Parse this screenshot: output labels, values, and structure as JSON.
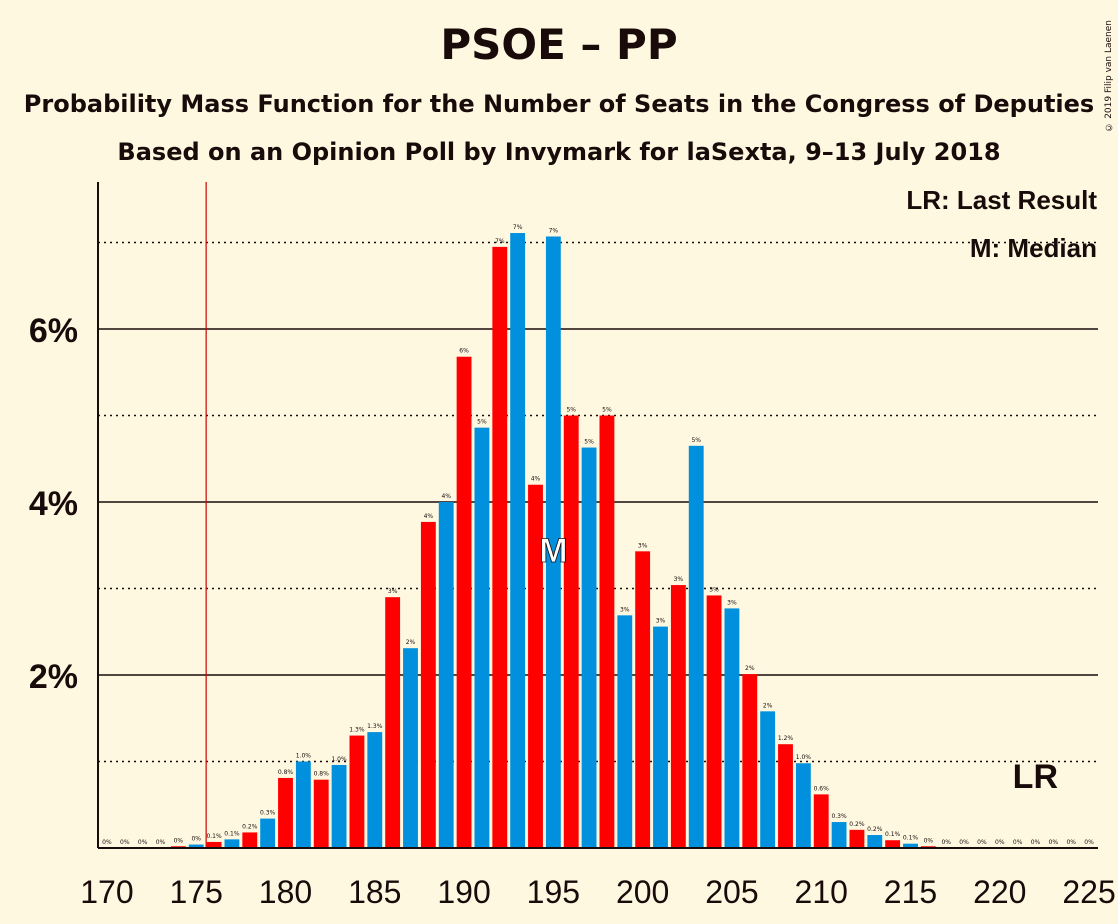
{
  "header": {
    "title": "PSOE – PP",
    "subtitle": "Probability Mass Function for the Number of Seats in the Congress of Deputies",
    "subtitle2": "Based on an Opinion Poll by Invymark for laSexta, 9–13 July 2018",
    "copyright": "© 2019 Filip van Laenen"
  },
  "legend": {
    "last_result": "LR: Last Result",
    "median": "M: Median"
  },
  "colors": {
    "background": "#fff8e1",
    "red": "#ff0000",
    "blue": "#0090dd",
    "text": "#1a0b0b",
    "last_result_line": "#cc0000"
  },
  "chart_data": {
    "type": "bar",
    "x_start": 170,
    "x_end": 225,
    "xticks": [
      170,
      175,
      180,
      185,
      190,
      195,
      200,
      205,
      210,
      215,
      220,
      225
    ],
    "ylim": [
      0,
      7.7
    ],
    "yticks": [
      {
        "value": 2,
        "label": "2%"
      },
      {
        "value": 4,
        "label": "4%"
      },
      {
        "value": 6,
        "label": "6%"
      }
    ],
    "dotted_gridlines": [
      1,
      3,
      5,
      7
    ],
    "last_result": 176,
    "median": 195,
    "median_label": "M",
    "last_result_label": "LR",
    "bars": [
      {
        "seats": 170,
        "value": 0.0,
        "label": "0%"
      },
      {
        "seats": 171,
        "value": 0.0,
        "label": "0%"
      },
      {
        "seats": 172,
        "value": 0.0,
        "label": "0%"
      },
      {
        "seats": 173,
        "value": 0.0,
        "label": "0%"
      },
      {
        "seats": 174,
        "value": 0.02,
        "label": "0%"
      },
      {
        "seats": 175,
        "value": 0.04,
        "label": "0%"
      },
      {
        "seats": 176,
        "value": 0.07,
        "label": "0.1%"
      },
      {
        "seats": 177,
        "value": 0.1,
        "label": "0.1%"
      },
      {
        "seats": 178,
        "value": 0.18,
        "label": "0.2%"
      },
      {
        "seats": 179,
        "value": 0.34,
        "label": "0.3%"
      },
      {
        "seats": 180,
        "value": 0.81,
        "label": "0.8%"
      },
      {
        "seats": 181,
        "value": 1.0,
        "label": "1.0%"
      },
      {
        "seats": 182,
        "value": 0.79,
        "label": "0.8%"
      },
      {
        "seats": 183,
        "value": 0.96,
        "label": "1.0%"
      },
      {
        "seats": 184,
        "value": 1.3,
        "label": "1.3%"
      },
      {
        "seats": 185,
        "value": 1.34,
        "label": "1.3%"
      },
      {
        "seats": 186,
        "value": 2.9,
        "label": "3%"
      },
      {
        "seats": 187,
        "value": 2.31,
        "label": "2%"
      },
      {
        "seats": 188,
        "value": 3.77,
        "label": "4%"
      },
      {
        "seats": 189,
        "value": 4.0,
        "label": "4%"
      },
      {
        "seats": 190,
        "value": 5.68,
        "label": "6%"
      },
      {
        "seats": 191,
        "value": 4.86,
        "label": "5%"
      },
      {
        "seats": 192,
        "value": 6.95,
        "label": "7%"
      },
      {
        "seats": 193,
        "value": 7.11,
        "label": "7%"
      },
      {
        "seats": 194,
        "value": 4.2,
        "label": "4%"
      },
      {
        "seats": 195,
        "value": 7.07,
        "label": "7%"
      },
      {
        "seats": 196,
        "value": 5.0,
        "label": "5%"
      },
      {
        "seats": 197,
        "value": 4.63,
        "label": "5%"
      },
      {
        "seats": 198,
        "value": 5.0,
        "label": "5%"
      },
      {
        "seats": 199,
        "value": 2.69,
        "label": "3%"
      },
      {
        "seats": 200,
        "value": 3.43,
        "label": "3%"
      },
      {
        "seats": 201,
        "value": 2.56,
        "label": "3%"
      },
      {
        "seats": 202,
        "value": 3.04,
        "label": "3%"
      },
      {
        "seats": 203,
        "value": 4.65,
        "label": "5%"
      },
      {
        "seats": 204,
        "value": 2.92,
        "label": "3%"
      },
      {
        "seats": 205,
        "value": 2.77,
        "label": "3%"
      },
      {
        "seats": 206,
        "value": 2.01,
        "label": "2%"
      },
      {
        "seats": 207,
        "value": 1.58,
        "label": "2%"
      },
      {
        "seats": 208,
        "value": 1.2,
        "label": "1.2%"
      },
      {
        "seats": 209,
        "value": 0.98,
        "label": "1.0%"
      },
      {
        "seats": 210,
        "value": 0.62,
        "label": "0.6%"
      },
      {
        "seats": 211,
        "value": 0.3,
        "label": "0.3%"
      },
      {
        "seats": 212,
        "value": 0.21,
        "label": "0.2%"
      },
      {
        "seats": 213,
        "value": 0.15,
        "label": "0.2%"
      },
      {
        "seats": 214,
        "value": 0.09,
        "label": "0.1%"
      },
      {
        "seats": 215,
        "value": 0.05,
        "label": "0.1%"
      },
      {
        "seats": 216,
        "value": 0.02,
        "label": "0%"
      },
      {
        "seats": 217,
        "value": 0.0,
        "label": "0%"
      },
      {
        "seats": 218,
        "value": 0.0,
        "label": "0%"
      },
      {
        "seats": 219,
        "value": 0.0,
        "label": "0%"
      },
      {
        "seats": 220,
        "value": 0.0,
        "label": "0%"
      },
      {
        "seats": 221,
        "value": 0.0,
        "label": "0%"
      },
      {
        "seats": 222,
        "value": 0.0,
        "label": "0%"
      },
      {
        "seats": 223,
        "value": 0.0,
        "label": "0%"
      },
      {
        "seats": 224,
        "value": 0.0,
        "label": "0%"
      },
      {
        "seats": 225,
        "value": 0.0,
        "label": "0%"
      }
    ]
  }
}
